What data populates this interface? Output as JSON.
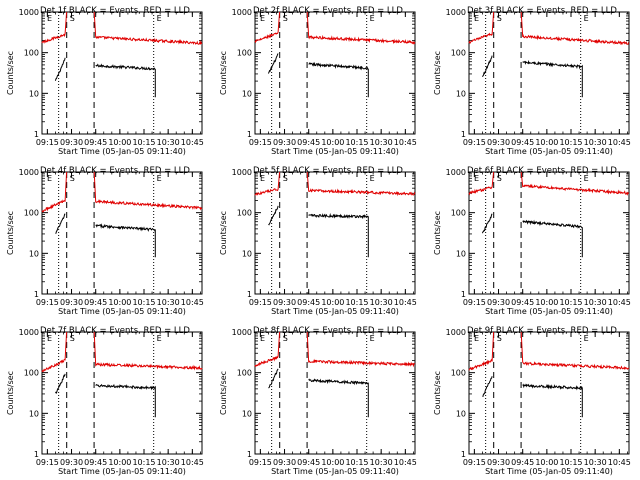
{
  "figure": {
    "ylabel": "Counts/sec",
    "xlabel": "Start Time (05-Jan-05 09:11:40)",
    "x_ticks": [
      "09:15",
      "09:30",
      "09:45",
      "10:00",
      "10:15",
      "10:30",
      "10:45"
    ],
    "y_ticks": [
      "1",
      "10",
      "100",
      "1000"
    ],
    "marker_labels": [
      "E",
      "S",
      "E"
    ],
    "colors": {
      "events": "#000000",
      "lld": "#e00000"
    }
  },
  "chart_data": [
    {
      "type": "line",
      "title": "Det 1f BLACK = Events, RED = LLD",
      "xlim": [
        "09:11:40",
        "10:51"
      ],
      "ylim": [
        1,
        1000
      ],
      "yscale": "log",
      "vlines": {
        "dotted": [
          "09:22",
          "10:21"
        ],
        "dashed": [
          "09:27",
          "09:44"
        ]
      },
      "series": [
        {
          "name": "Events",
          "segments": [
            {
              "t0": "09:20",
              "t1": "09:26",
              "v0": 20,
              "v1": 70
            },
            {
              "t0": "09:45",
              "t1": "10:22",
              "v0": 48,
              "v1": 40
            }
          ]
        },
        {
          "name": "LLD",
          "segments": [
            {
              "t0": "09:11:40",
              "t1": "09:26",
              "v0": 180,
              "v1": 280
            },
            {
              "t0": "09:45",
              "t1": "10:51",
              "v0": 240,
              "v1": 170
            }
          ]
        }
      ]
    },
    {
      "type": "line",
      "title": "Det 2f BLACK = Events, RED = LLD",
      "xlim": [
        "09:11:40",
        "10:51"
      ],
      "ylim": [
        1,
        1000
      ],
      "yscale": "log",
      "vlines": {
        "dotted": [
          "09:22",
          "10:21"
        ],
        "dashed": [
          "09:27",
          "09:44"
        ]
      },
      "series": [
        {
          "name": "Events",
          "segments": [
            {
              "t0": "09:20",
              "t1": "09:26",
              "v0": 30,
              "v1": 90
            },
            {
              "t0": "09:45",
              "t1": "10:22",
              "v0": 52,
              "v1": 42
            }
          ]
        },
        {
          "name": "LLD",
          "segments": [
            {
              "t0": "09:11:40",
              "t1": "09:26",
              "v0": 190,
              "v1": 300
            },
            {
              "t0": "09:45",
              "t1": "10:51",
              "v0": 240,
              "v1": 180
            }
          ]
        }
      ]
    },
    {
      "type": "line",
      "title": "Det 3f BLACK = Events, RED = LLD",
      "xlim": [
        "09:11:40",
        "10:51"
      ],
      "ylim": [
        1,
        1000
      ],
      "yscale": "log",
      "vlines": {
        "dotted": [
          "09:22",
          "10:21"
        ],
        "dashed": [
          "09:27",
          "09:44"
        ]
      },
      "series": [
        {
          "name": "Events",
          "segments": [
            {
              "t0": "09:20",
              "t1": "09:26",
              "v0": 25,
              "v1": 80
            },
            {
              "t0": "09:45",
              "t1": "10:22",
              "v0": 58,
              "v1": 45
            }
          ]
        },
        {
          "name": "LLD",
          "segments": [
            {
              "t0": "09:11:40",
              "t1": "09:26",
              "v0": 180,
              "v1": 290
            },
            {
              "t0": "09:45",
              "t1": "10:51",
              "v0": 250,
              "v1": 170
            }
          ]
        }
      ]
    },
    {
      "type": "line",
      "title": "Det 4f BLACK = Events, RED = LLD",
      "xlim": [
        "09:11:40",
        "10:51"
      ],
      "ylim": [
        1,
        1000
      ],
      "yscale": "log",
      "vlines": {
        "dotted": [
          "09:22",
          "10:21"
        ],
        "dashed": [
          "09:27",
          "09:44"
        ]
      },
      "series": [
        {
          "name": "Events",
          "segments": [
            {
              "t0": "09:20",
              "t1": "09:26",
              "v0": 30,
              "v1": 90
            },
            {
              "t0": "09:45",
              "t1": "10:22",
              "v0": 48,
              "v1": 38
            }
          ]
        },
        {
          "name": "LLD",
          "segments": [
            {
              "t0": "09:11:40",
              "t1": "09:26",
              "v0": 110,
              "v1": 200
            },
            {
              "t0": "09:45",
              "t1": "10:51",
              "v0": 190,
              "v1": 130
            }
          ]
        }
      ]
    },
    {
      "type": "line",
      "title": "Det 5f BLACK = Events, RED = LLD",
      "xlim": [
        "09:11:40",
        "10:51"
      ],
      "ylim": [
        1,
        1000
      ],
      "yscale": "log",
      "vlines": {
        "dotted": [
          "09:22",
          "10:21"
        ],
        "dashed": [
          "09:27",
          "09:44"
        ]
      },
      "series": [
        {
          "name": "Events",
          "segments": [
            {
              "t0": "09:20",
              "t1": "09:26",
              "v0": 50,
              "v1": 140
            },
            {
              "t0": "09:45",
              "t1": "10:22",
              "v0": 85,
              "v1": 80
            }
          ]
        },
        {
          "name": "LLD",
          "segments": [
            {
              "t0": "09:11:40",
              "t1": "09:26",
              "v0": 280,
              "v1": 380
            },
            {
              "t0": "09:45",
              "t1": "10:51",
              "v0": 350,
              "v1": 290
            }
          ]
        }
      ]
    },
    {
      "type": "line",
      "title": "Det 6f BLACK = Events, RED = LLD",
      "xlim": [
        "09:11:40",
        "10:51"
      ],
      "ylim": [
        1,
        1000
      ],
      "yscale": "log",
      "vlines": {
        "dotted": [
          "09:22",
          "10:21"
        ],
        "dashed": [
          "09:27",
          "09:44"
        ]
      },
      "series": [
        {
          "name": "Events",
          "segments": [
            {
              "t0": "09:20",
              "t1": "09:26",
              "v0": 30,
              "v1": 90
            },
            {
              "t0": "09:45",
              "t1": "10:22",
              "v0": 60,
              "v1": 45
            }
          ]
        },
        {
          "name": "LLD",
          "segments": [
            {
              "t0": "09:11:40",
              "t1": "09:26",
              "v0": 300,
              "v1": 420
            },
            {
              "t0": "09:45",
              "t1": "10:51",
              "v0": 460,
              "v1": 300
            }
          ]
        }
      ]
    },
    {
      "type": "line",
      "title": "Det 7f BLACK = Events, RED = LLD",
      "xlim": [
        "09:11:40",
        "10:51"
      ],
      "ylim": [
        1,
        1000
      ],
      "yscale": "log",
      "vlines": {
        "dotted": [
          "09:22",
          "10:21"
        ],
        "dashed": [
          "09:27",
          "09:44"
        ]
      },
      "series": [
        {
          "name": "Events",
          "segments": [
            {
              "t0": "09:20",
              "t1": "09:26",
              "v0": 30,
              "v1": 90
            },
            {
              "t0": "09:45",
              "t1": "10:22",
              "v0": 48,
              "v1": 42
            }
          ]
        },
        {
          "name": "LLD",
          "segments": [
            {
              "t0": "09:11:40",
              "t1": "09:26",
              "v0": 110,
              "v1": 200
            },
            {
              "t0": "09:45",
              "t1": "10:51",
              "v0": 160,
              "v1": 130
            }
          ]
        }
      ]
    },
    {
      "type": "line",
      "title": "Det 8f BLACK = Events, RED = LLD",
      "xlim": [
        "09:11:40",
        "10:51"
      ],
      "ylim": [
        1,
        1000
      ],
      "yscale": "log",
      "vlines": {
        "dotted": [
          "09:22",
          "10:21"
        ],
        "dashed": [
          "09:27",
          "09:44"
        ]
      },
      "series": [
        {
          "name": "Events",
          "segments": [
            {
              "t0": "09:20",
              "t1": "09:26",
              "v0": 40,
              "v1": 120
            },
            {
              "t0": "09:45",
              "t1": "10:22",
              "v0": 65,
              "v1": 55
            }
          ]
        },
        {
          "name": "LLD",
          "segments": [
            {
              "t0": "09:11:40",
              "t1": "09:26",
              "v0": 150,
              "v1": 240
            },
            {
              "t0": "09:45",
              "t1": "10:51",
              "v0": 190,
              "v1": 160
            }
          ]
        }
      ]
    },
    {
      "type": "line",
      "title": "Det 9f BLACK = Events, RED = LLD",
      "xlim": [
        "09:11:40",
        "10:51"
      ],
      "ylim": [
        1,
        1000
      ],
      "yscale": "log",
      "vlines": {
        "dotted": [
          "09:22",
          "10:21"
        ],
        "dashed": [
          "09:27",
          "09:44"
        ]
      },
      "series": [
        {
          "name": "Events",
          "segments": [
            {
              "t0": "09:20",
              "t1": "09:26",
              "v0": 25,
              "v1": 80
            },
            {
              "t0": "09:45",
              "t1": "10:22",
              "v0": 48,
              "v1": 42
            }
          ]
        },
        {
          "name": "LLD",
          "segments": [
            {
              "t0": "09:11:40",
              "t1": "09:26",
              "v0": 120,
              "v1": 200
            },
            {
              "t0": "09:45",
              "t1": "10:51",
              "v0": 170,
              "v1": 130
            }
          ]
        }
      ]
    }
  ]
}
